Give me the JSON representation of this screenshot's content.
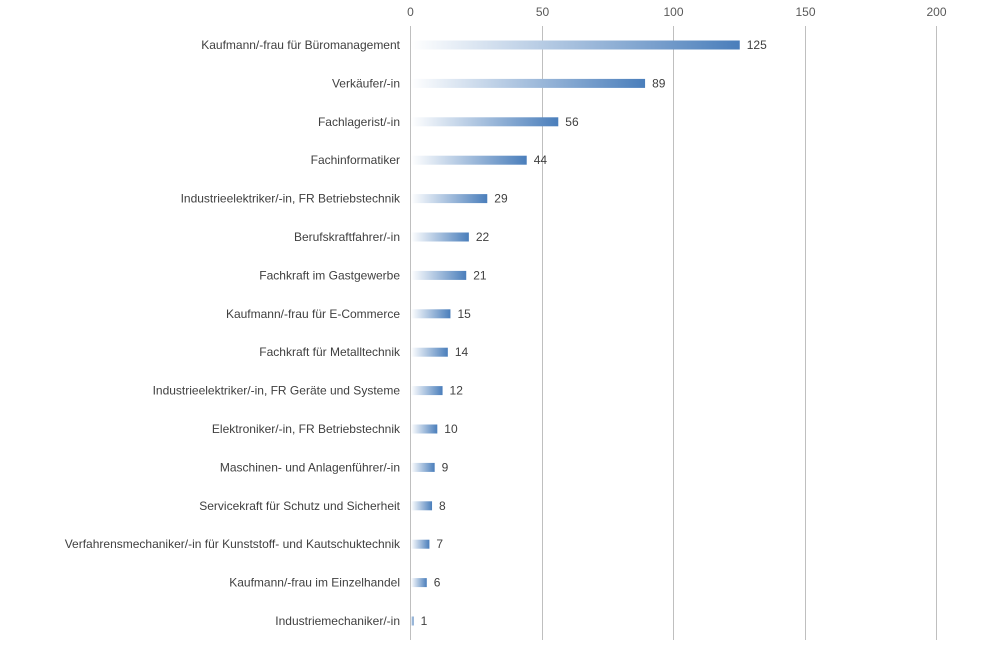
{
  "chart_data": {
    "type": "bar",
    "orientation": "horizontal",
    "categories": [
      "Kaufmann/-frau für Büromanagement",
      "Verkäufer/-in",
      "Fachlagerist/-in",
      "Fachinformatiker",
      "Industrieelektriker/-in, FR Betriebstechnik",
      "Berufskraftfahrer/-in",
      "Fachkraft im Gastgewerbe",
      "Kaufmann/-frau für E-Commerce",
      "Fachkraft für Metalltechnik",
      "Industrieelektriker/-in, FR Geräte und Systeme",
      "Elektroniker/-in, FR Betriebstechnik",
      "Maschinen- und Anlagenführer/-in",
      "Servicekraft für Schutz und Sicherheit",
      "Verfahrensmechaniker/-in für Kunststoff- und Kautschuktechnik",
      "Kaufmann/-frau im Einzelhandel",
      "Industriemechaniker/-in"
    ],
    "values": [
      125,
      89,
      56,
      44,
      29,
      22,
      21,
      15,
      14,
      12,
      10,
      9,
      8,
      7,
      6,
      1
    ],
    "xlim": [
      0,
      200
    ],
    "xticks": [
      "0",
      "50",
      "100",
      "150",
      "200"
    ],
    "axis_position": "top",
    "grid": true,
    "bar_color": "#4a7ebb",
    "bar_fill": "gradient-white-to-blue",
    "title": "",
    "xlabel": "",
    "ylabel": ""
  }
}
